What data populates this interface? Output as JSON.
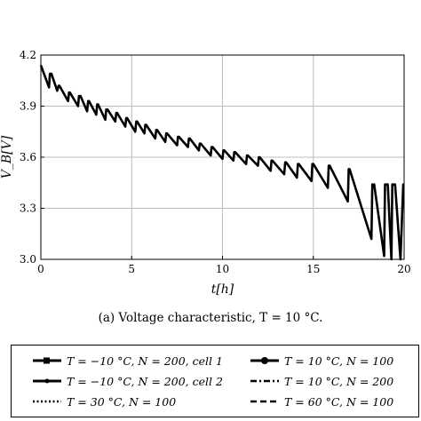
{
  "chart_data": {
    "type": "line",
    "title": "",
    "xlabel": "t[h]",
    "ylabel": "V_B[V]",
    "xlim": [
      0,
      20
    ],
    "ylim": [
      3.0,
      4.2
    ],
    "xticks": [
      "0",
      "5",
      "10",
      "15",
      "20"
    ],
    "yticks": [
      "3.0",
      "3.3",
      "3.6",
      "3.9",
      "4.2"
    ],
    "grid": true,
    "legend_position": "below",
    "caption": "(a) Voltage characteristic, T = 10 °C.",
    "series": [
      {
        "name": "T = 10 °C, N = 100",
        "color": "#000000",
        "x": [
          0.0,
          0.45,
          0.5,
          0.58,
          0.9,
          0.98,
          1.02,
          1.5,
          1.55,
          1.6,
          2.05,
          2.1,
          2.18,
          2.55,
          2.6,
          2.65,
          3.05,
          3.1,
          3.15,
          3.55,
          3.6,
          3.67,
          4.1,
          4.15,
          4.2,
          4.65,
          4.7,
          4.75,
          5.2,
          5.25,
          5.3,
          5.7,
          5.75,
          5.8,
          6.3,
          6.35,
          6.4,
          6.85,
          6.9,
          6.95,
          7.5,
          7.55,
          7.6,
          8.1,
          8.15,
          8.2,
          8.7,
          8.75,
          8.8,
          9.35,
          9.4,
          9.45,
          10.0,
          10.05,
          10.1,
          10.6,
          10.65,
          10.7,
          11.3,
          11.35,
          11.4,
          11.95,
          12.0,
          12.05,
          12.65,
          12.7,
          12.75,
          13.4,
          13.45,
          13.5,
          14.1,
          14.15,
          14.2,
          14.9,
          14.95,
          15.0,
          15.8,
          15.85,
          15.9,
          16.9,
          16.95,
          17.0,
          18.2,
          18.25,
          18.35,
          18.9,
          18.95,
          19.1,
          19.3,
          19.35,
          19.5,
          19.8,
          19.95,
          20.0
        ],
        "y": [
          4.14,
          4.01,
          4.09,
          4.09,
          3.99,
          4.02,
          4.02,
          3.93,
          3.98,
          3.98,
          3.9,
          3.96,
          3.96,
          3.87,
          3.93,
          3.93,
          3.85,
          3.91,
          3.91,
          3.82,
          3.88,
          3.88,
          3.81,
          3.86,
          3.86,
          3.78,
          3.83,
          3.83,
          3.75,
          3.81,
          3.81,
          3.74,
          3.79,
          3.79,
          3.71,
          3.76,
          3.76,
          3.69,
          3.74,
          3.74,
          3.67,
          3.72,
          3.72,
          3.66,
          3.71,
          3.71,
          3.64,
          3.68,
          3.68,
          3.61,
          3.66,
          3.66,
          3.59,
          3.64,
          3.64,
          3.58,
          3.63,
          3.63,
          3.56,
          3.61,
          3.61,
          3.55,
          3.6,
          3.6,
          3.52,
          3.58,
          3.58,
          3.5,
          3.57,
          3.57,
          3.48,
          3.56,
          3.56,
          3.46,
          3.56,
          3.56,
          3.42,
          3.55,
          3.55,
          3.34,
          3.53,
          3.53,
          3.12,
          3.44,
          3.44,
          3.02,
          3.44,
          3.44,
          3.0,
          3.44,
          3.44,
          3.0,
          3.44,
          3.44
        ]
      }
    ]
  },
  "legend": {
    "items": [
      {
        "label": "T = −10 °C, N = 200, cell 1",
        "style": "solid-square"
      },
      {
        "label": "T = 10 °C, N = 100",
        "style": "solid-circle"
      },
      {
        "label": "T = −10 °C, N = 200, cell 2",
        "style": "solid-dot"
      },
      {
        "label": "T = 10 °C, N = 200",
        "style": "dashdot"
      },
      {
        "label": "T = 30 °C, N = 100",
        "style": "dotted"
      },
      {
        "label": "T = 60 °C, N = 100",
        "style": "dashed"
      }
    ]
  }
}
